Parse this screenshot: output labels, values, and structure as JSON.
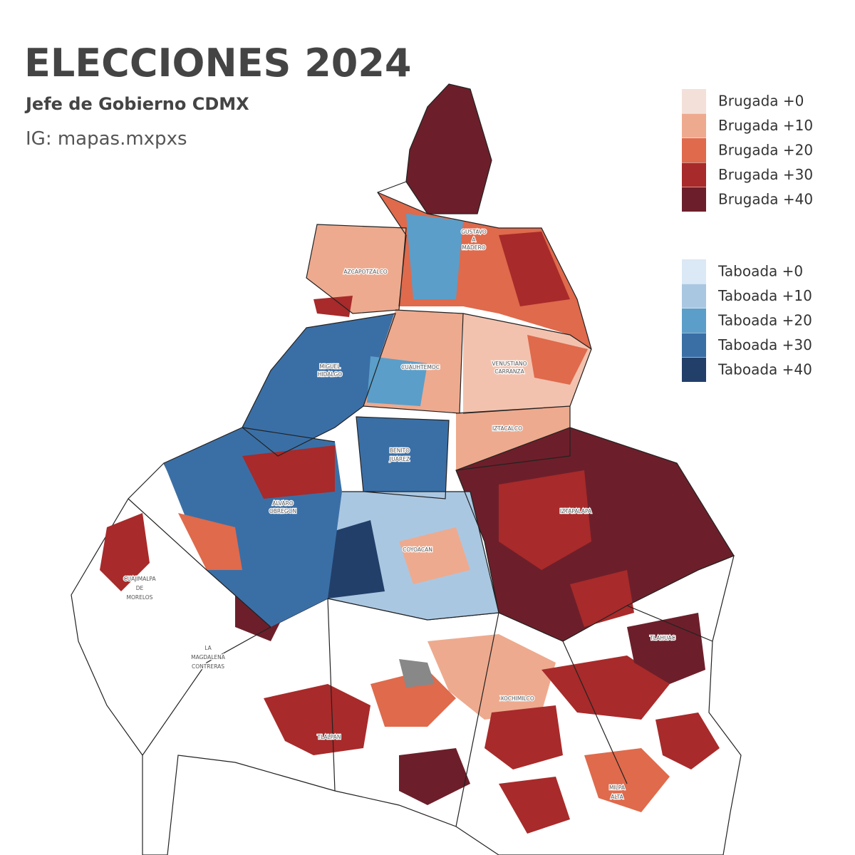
{
  "header": {
    "title": "ELECCIONES 2024",
    "subtitle": "Jefe de Gobierno CDMX",
    "credit": "IG: mapas.mxpxs"
  },
  "legend": {
    "groups": [
      {
        "items": [
          {
            "label": "Brugada +0",
            "color": "#f3e1d9"
          },
          {
            "label": "Brugada +10",
            "color": "#eeaa8e"
          },
          {
            "label": "Brugada +20",
            "color": "#df6a4c"
          },
          {
            "label": "Brugada +30",
            "color": "#a82a2a"
          },
          {
            "label": "Brugada +40",
            "color": "#6c1f2a"
          }
        ]
      },
      {
        "items": [
          {
            "label": "Taboada +0",
            "color": "#dbe8f5"
          },
          {
            "label": "Taboada +10",
            "color": "#aac7e2"
          },
          {
            "label": "Taboada +20",
            "color": "#5b9ec9"
          },
          {
            "label": "Taboada +30",
            "color": "#3a6fa6"
          },
          {
            "label": "Taboada +40",
            "color": "#223f6a"
          }
        ]
      }
    ]
  },
  "map": {
    "boroughs": [
      {
        "lines": [
          "GUSTAVO",
          "A",
          "MADERO"
        ]
      },
      {
        "lines": [
          "AZCAPOTZALCO"
        ]
      },
      {
        "lines": [
          "MIGUEL",
          "HIDALGO"
        ]
      },
      {
        "lines": [
          "CUAUHTEMOC"
        ]
      },
      {
        "lines": [
          "VENUSTIANO",
          "CARRANZA"
        ]
      },
      {
        "lines": [
          "IZTACALCO"
        ]
      },
      {
        "lines": [
          "BENITO",
          "JUAREZ"
        ]
      },
      {
        "lines": [
          "ALVARO",
          "OBREGON"
        ]
      },
      {
        "lines": [
          "IZTAPALAPA"
        ]
      },
      {
        "lines": [
          "COYOACAN"
        ]
      },
      {
        "lines": [
          "CUAJIMALPA",
          "DE",
          "MORELOS"
        ]
      },
      {
        "lines": [
          "LA",
          "MAGDALENA",
          "CONTRERAS"
        ]
      },
      {
        "lines": [
          "TLAHUAC"
        ]
      },
      {
        "lines": [
          "XOCHIMILCO"
        ]
      },
      {
        "lines": [
          "TLALPAN"
        ]
      },
      {
        "lines": [
          "MILPA",
          "ALTA"
        ]
      }
    ]
  }
}
